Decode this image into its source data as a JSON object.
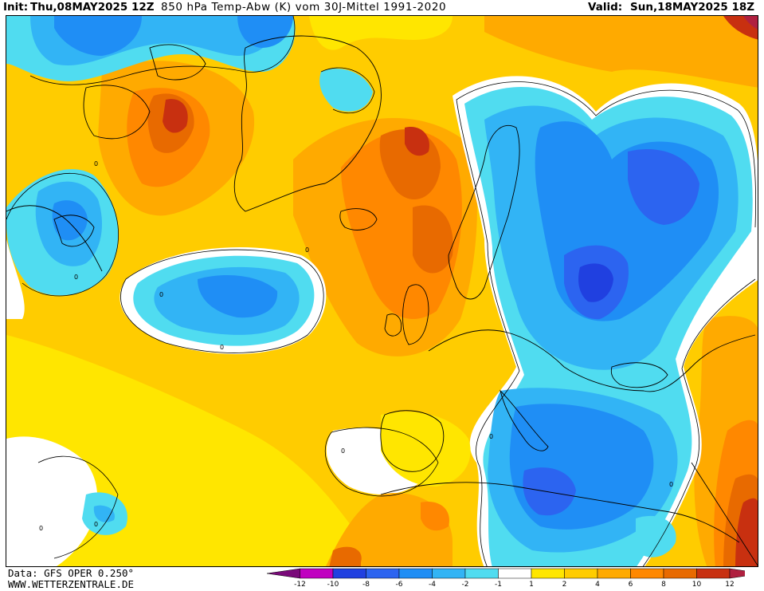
{
  "header": {
    "init_label": "Init:",
    "init_value": "Thu,08MAY2025 12Z",
    "title": "850 hPa Temp-Abw (K) vom 30J-Mittel 1991-2020",
    "valid_label": "Valid:",
    "valid_value": "Sun,18MAY2025 18Z"
  },
  "footer": {
    "data_source": "Data: GFS OPER 0.250°",
    "website": "WWW.WETTERZENTRALE.DE"
  },
  "legend": {
    "labels": [
      "-12",
      "-10",
      "-8",
      "-6",
      "-4",
      "-2",
      "-1",
      "1",
      "2",
      "4",
      "6",
      "8",
      "10",
      "12"
    ],
    "colors": [
      "#7a0a7a",
      "#c000c0",
      "#2040e0",
      "#2c64f0",
      "#1f8ef5",
      "#32b4f5",
      "#50dcf0",
      "#ffffff",
      "#ffe600",
      "#ffcc00",
      "#ffaa00",
      "#ff8800",
      "#e86a00",
      "#c83010",
      "#b02040"
    ]
  },
  "map": {
    "contour_labels": [
      "0",
      "0",
      "0",
      "0",
      "0",
      "0",
      "0",
      "0",
      "0",
      "0"
    ]
  }
}
